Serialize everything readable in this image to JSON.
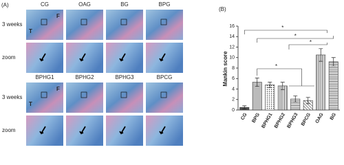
{
  "panel_a": {
    "label": "(A)",
    "row_labels": [
      "3 weeks",
      "zoom",
      "3 weeks",
      "zoom"
    ],
    "top_groups": [
      "CG",
      "OAG",
      "BG",
      "BPG"
    ],
    "bottom_groups": [
      "BPHG1",
      "BPHG2",
      "BPHG3",
      "BPCG"
    ],
    "markers": [
      "T",
      "F"
    ]
  },
  "chart_data": {
    "type": "bar",
    "label": "(B)",
    "y_label": "Mankin score",
    "categories": [
      "CG",
      "BPG",
      "BPHG1",
      "BPHG2",
      "BPHG3",
      "BPCG",
      "OAG",
      "BG"
    ],
    "values": [
      0.5,
      5.3,
      4.8,
      4.6,
      2.1,
      1.8,
      10.5,
      9.2
    ],
    "errors": [
      0.3,
      0.8,
      0.5,
      0.7,
      0.6,
      0.6,
      1.2,
      0.8
    ],
    "colors": [
      "#555555",
      "#bbbbbb",
      "#ffffff",
      "#ffffff",
      "#ffffff",
      "#ffffff",
      "#dddddd",
      "#ffffff"
    ],
    "ylim": [
      0,
      16
    ],
    "yticks": [
      0,
      2,
      4,
      6,
      8,
      10,
      12,
      14,
      16
    ],
    "annotations": [
      "*",
      "*",
      "*",
      "*"
    ]
  }
}
